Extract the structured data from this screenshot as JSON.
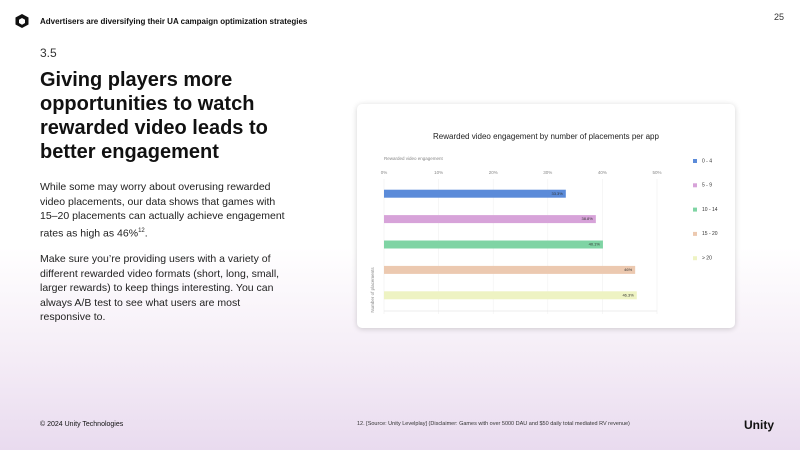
{
  "header": "Advertisers are diversifying their UA campaign optimization strategies",
  "page_number": "25",
  "section": "3.5",
  "title": "Giving players more opportunities to watch rewarded video leads to better engagement",
  "body": [
    {
      "text": "While some may worry about overusing rewarded video placements, our data shows that games with 15–20 placements can actually achieve engagement rates as high as 46%",
      "sup": "12",
      "tail": "."
    },
    {
      "text": "Make sure you’re providing users with a variety of different rewarded video formats (short, long, small, larger rewards) to keep things interesting. You can always A/B test to see what users are most responsive to."
    }
  ],
  "footer": "© 2024 Unity Technologies",
  "footnote": "12. [Source: Unity Levelplay] (Disclaimer: Games with over 5000 DAU and $50 daily total mediated RV revenue)",
  "logo": "Unity",
  "chart_data": {
    "type": "bar",
    "orientation": "horizontal",
    "title": "Rewarded video engagement by number of placements per app",
    "x_label": "Rewarded video engagement",
    "y_label": "Number of placements",
    "categories": [
      "0 - 4",
      "5 - 9",
      "10 - 14",
      "15 - 20",
      "> 20"
    ],
    "values": [
      33.3,
      38.8,
      40.1,
      46,
      46.3
    ],
    "value_labels": [
      "33.3%",
      "38.8%",
      "40.1%",
      "46%",
      "46.3%"
    ],
    "colors": [
      "#5b8bd9",
      "#d7a3d9",
      "#7fd4a4",
      "#ecc9b0",
      "#eef3c3"
    ],
    "xlim": [
      0,
      50
    ],
    "xticks": [
      {
        "value": 0,
        "label": "0%"
      },
      {
        "value": 10,
        "label": "10%"
      },
      {
        "value": 20,
        "label": "20%"
      },
      {
        "value": 30,
        "label": "30%"
      },
      {
        "value": 40,
        "label": "40%"
      },
      {
        "value": 50,
        "label": "50%"
      }
    ],
    "grid": true,
    "legend": "right"
  }
}
